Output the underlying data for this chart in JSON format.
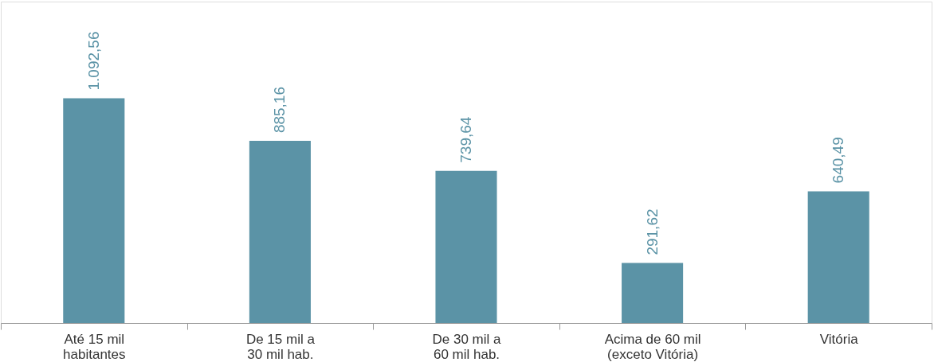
{
  "chart_data": {
    "type": "bar",
    "categories": [
      "Até 15 mil\nhabitantes",
      "De 15 mil a\n30 mil hab.",
      "De 30 mil a\n60 mil hab.",
      "Acima de 60 mil\n(exceto Vitória)",
      "Vitória"
    ],
    "values": [
      1092.56,
      885.16,
      739.64,
      291.62,
      640.49
    ],
    "value_labels": [
      "1.092,56",
      "885,16",
      "739,64",
      "291,62",
      "640,49"
    ],
    "color": "#5b93a6"
  }
}
